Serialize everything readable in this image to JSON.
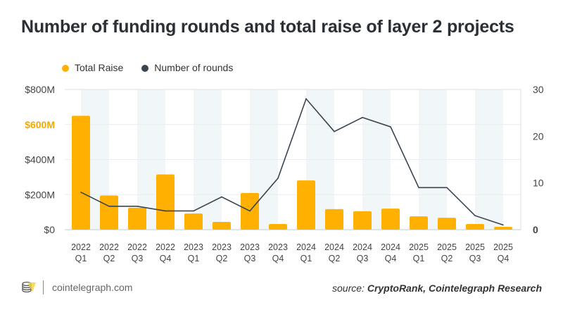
{
  "chart_data": {
    "type": "bar",
    "title": "Number of funding rounds and total raise of layer 2 projects",
    "categories": [
      "2022 Q1",
      "2022 Q2",
      "2022 Q3",
      "2022 Q4",
      "2023 Q1",
      "2023 Q2",
      "2023 Q3",
      "2023 Q4",
      "2024 Q1",
      "2024 Q2",
      "2024 Q3",
      "2024 Q4",
      "2025 Q1",
      "2025 Q2",
      "2025 Q3",
      "2025 Q4"
    ],
    "series": [
      {
        "name": "Total Raise",
        "type": "bar",
        "axis": "left",
        "color": "#FFB000",
        "values": [
          650,
          195,
          125,
          315,
          92,
          44,
          209,
          32,
          281,
          117,
          105,
          120,
          76,
          68,
          32,
          16
        ]
      },
      {
        "name": "Number of rounds",
        "type": "line",
        "axis": "right",
        "color": "#3a4550",
        "values": [
          8,
          5,
          5,
          4,
          4,
          7,
          4,
          11,
          28,
          21,
          24,
          22,
          9,
          9,
          3,
          1
        ]
      }
    ],
    "left_axis": {
      "ylim": [
        0,
        800
      ],
      "ticks": [
        "$0",
        "$200M",
        "$400M",
        "$600M",
        "$800M"
      ],
      "highlight_tick": "$600M",
      "highlight_color": "#F2A900"
    },
    "right_axis": {
      "ylim": [
        0,
        30
      ],
      "ticks": [
        "0",
        "10",
        "20",
        "30"
      ]
    },
    "grid": true,
    "legend": "top-left"
  },
  "footer": {
    "brand": "cointelegraph.com",
    "source_prefix": "source: ",
    "source_names": "CryptoRank, Cointelegraph Research"
  }
}
